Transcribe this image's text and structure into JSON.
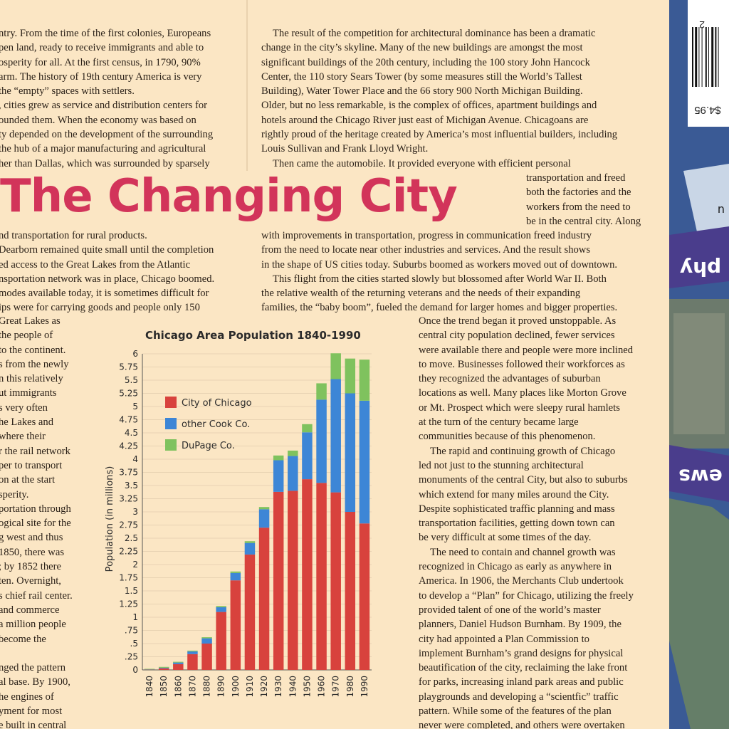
{
  "title": "The Changing City",
  "col1_top": [
    "ntry. From the time of the first colonies, Europeans",
    "pen land, ready to receive immigrants and able to",
    "osperity for all. At the first census, in 1790, 90%",
    "arm. The history of 19th century America is very",
    "the “empty” spaces with settlers.",
    ", cities grew as service and distribution centers for",
    "ounded them. When the economy was based on",
    "ty depended on the development of the surrounding",
    " the hub of a major manufacturing and agricultural",
    "her than Dallas, which was surrounded by sparsely"
  ],
  "col1_mid": [
    "nd transportation for rural products.",
    "Dearborn remained quite small until the completion",
    "ed access to the Great Lakes from the Atlantic",
    "nsportation network was in place, Chicago boomed.",
    " modes available today, it is sometimes difficult for",
    "ips were for carrying goods and people only 150"
  ],
  "col1_bottom": [
    " Great Lakes as",
    " the people of",
    "to the continent.",
    "s from the newly",
    "n this relatively",
    "ut immigrants",
    "s very often",
    "he Lakes and",
    " where their",
    "r the rail network",
    "per to transport",
    "on at the start",
    "sperity.",
    "portation through",
    "ogical site for the",
    "g west and thus",
    " 1850, there was",
    "; by 1852 there",
    " ten. Overnight,",
    "s chief rail center.",
    " and commerce",
    " a million people",
    " become the",
    "",
    "nged the pattern",
    "al base. By 1900,",
    "he engines of",
    "yment for most",
    "e built in central"
  ],
  "col2_top": [
    "The result of the competition for architectural dominance has been a dramatic",
    "change in the city’s skyline. Many of the new buildings are amongst the most",
    "significant buildings of the 20th century, including the 100 story John Hancock",
    "Center, the 110 story Sears Tower (by some measures still the World’s Tallest",
    "Building), Water Tower Place and the 66 story 900 North Michigan Building.",
    "Older, but no less remarkable, is the complex of offices, apartment buildings and",
    "hotels around the Chicago River just east of Michigan Avenue. Chicagoans are",
    "rightly proud of the heritage created by America’s most influential builders, including",
    "Louis Sullivan and Frank Lloyd Wright.",
    "Then came the automobile. It provided everyone with efficient personal"
  ],
  "col2_right": [
    "transportation and freed",
    "both the factories and the",
    "workers from the need to",
    "be in the central city. Along"
  ],
  "col2_mid": [
    "with improvements in transportation, progress in communication freed industry",
    "from the need to locate near other industries and services. And the result shows",
    "in the shape of US cities today. Suburbs boomed as workers moved out of downtown.",
    "This flight from the cities started slowly but blossomed after World War II. Both",
    "the relative wealth of the returning veterans and the needs of their expanding",
    "families, the “baby boom”, fueled the demand for larger homes and bigger properties."
  ],
  "col3": [
    "Once the trend began it proved unstoppable. As",
    "central city population declined, fewer services",
    "were available there and people were more inclined",
    "to move. Businesses followed their workforces as",
    "they recognized the advantages of suburban",
    "locations as well. Many places like Morton Grove",
    "or Mt. Prospect which were sleepy rural hamlets",
    "at the turn of the century became large",
    "communities because of this phenomenon.",
    "The rapid and continuing growth of Chicago",
    "led not just to the stunning architectural",
    "monuments of the central City, but also to suburbs",
    "which extend for many miles around the City.",
    "Despite sophisticated traffic planning and mass",
    "transportation facilities, getting down town can",
    "be very difficult at some times of the day.",
    "The need to contain and channel growth was",
    "recognized in Chicago as early as anywhere in",
    "America. In 1906, the Merchants Club undertook",
    "to develop a “Plan” for Chicago, utilizing the freely",
    "provided talent of one of the world’s master",
    "planners, Daniel Hudson Burnham. By 1909, the",
    "city had appointed a Plan Commission to",
    "implement Burnham’s grand designs for physical",
    "beautification of the city, reclaiming the lake front",
    "for parks, increasing inland park areas and public",
    "playgrounds and developing a “scientfic” traffic",
    "pattern. While some of the features of the plan",
    "never were completed, and others were overtaken"
  ],
  "side": {
    "price": "$4.95",
    "barcode_digit": "2",
    "word_a": "phy",
    "word_b": "ews",
    "letter": "u"
  },
  "colors": {
    "title": "#d2345a",
    "city": "#d8423d",
    "cook": "#3d86d6",
    "dupage": "#7fc25e",
    "paper": "#fbe6c4",
    "lake": "#3a5a95"
  },
  "chart_data": {
    "type": "bar",
    "stacked": true,
    "title": "Chicago Area Population 1840-1990",
    "ylabel": "Population (in millions)",
    "xlabel": "",
    "ylim": [
      0,
      6
    ],
    "yticks": [
      "0",
      ".25",
      ".5",
      ".75",
      "1",
      "1.25",
      "1.5",
      "1.75",
      "2",
      "2.25",
      "2.5",
      "2.75",
      "3",
      "3.25",
      "3.5",
      "3.75",
      "4",
      "4.25",
      "4.5",
      "4.75",
      "5",
      "5.25",
      "5.5",
      "5.75",
      "6"
    ],
    "categories": [
      "1840",
      "1850",
      "1860",
      "1870",
      "1880",
      "1890",
      "1900",
      "1910",
      "1920",
      "1930",
      "1940",
      "1950",
      "1960",
      "1970",
      "1980",
      "1990"
    ],
    "legend_position": "top-left",
    "grid": true,
    "series": [
      {
        "name": "City of Chicago",
        "color": "#d8423d",
        "values": [
          0.005,
          0.03,
          0.11,
          0.3,
          0.5,
          1.1,
          1.7,
          2.19,
          2.7,
          3.38,
          3.4,
          3.62,
          3.55,
          3.37,
          3.0,
          2.78
        ]
      },
      {
        "name": "other Cook Co.",
        "color": "#3d86d6",
        "values": [
          0.005,
          0.012,
          0.03,
          0.05,
          0.1,
          0.09,
          0.14,
          0.22,
          0.35,
          0.6,
          0.66,
          0.89,
          1.58,
          2.15,
          2.25,
          2.33
        ]
      },
      {
        "name": "DuPage Co.",
        "color": "#7fc25e",
        "values": [
          0.01,
          0.015,
          0.014,
          0.016,
          0.02,
          0.022,
          0.028,
          0.033,
          0.042,
          0.09,
          0.103,
          0.155,
          0.31,
          0.49,
          0.66,
          0.78
        ]
      }
    ]
  }
}
